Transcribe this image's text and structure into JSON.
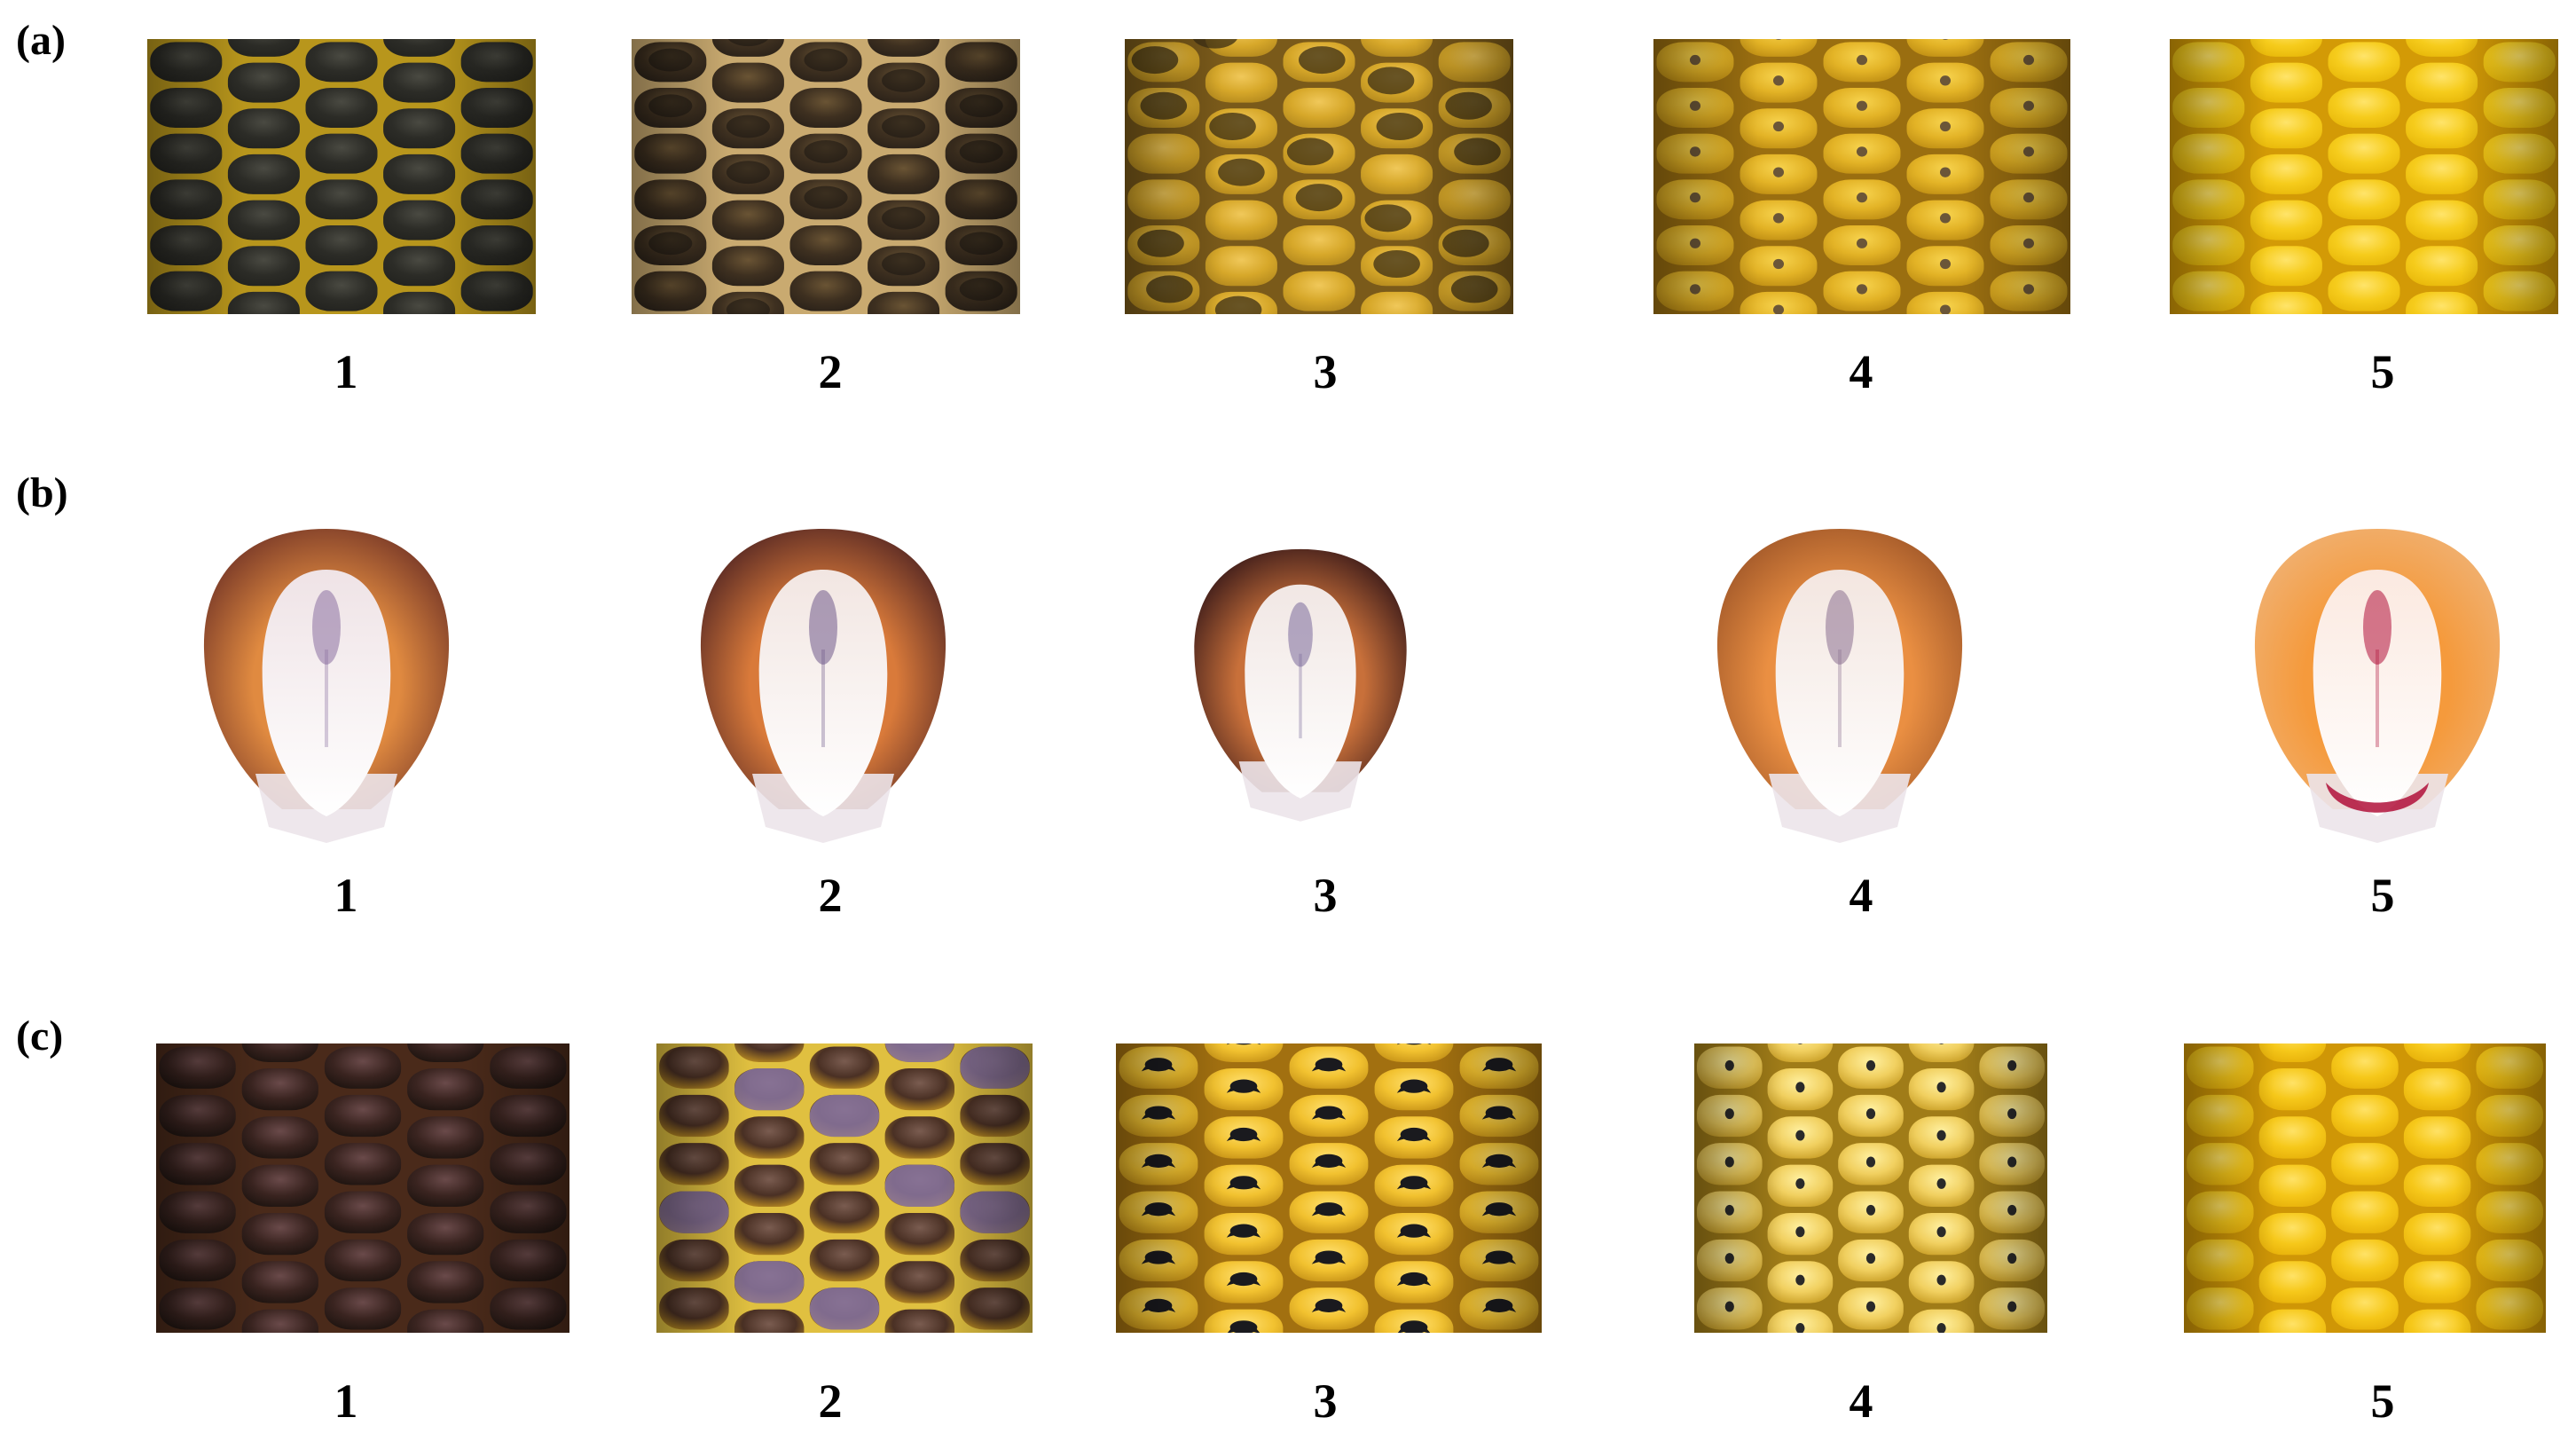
{
  "rows": [
    {
      "label": "(a)",
      "kind": "ear",
      "items": [
        {
          "label": "1",
          "base": "#23231f",
          "kernel": "#2c2c27",
          "highlight": "#4a4a42",
          "gap": "#b8961c",
          "spot": null,
          "spot_style": null
        },
        {
          "label": "2",
          "base": "#2b2219",
          "kernel": "#3e3020",
          "highlight": "#6a5434",
          "gap": "#c9aa70",
          "spot": "#1c1712",
          "spot_style": "blotch"
        },
        {
          "label": "3",
          "base": "#b58a1e",
          "kernel": "#d7a82a",
          "highlight": "#f0c85a",
          "gap": "#7a5a1a",
          "spot": "#3b2e14",
          "spot_style": "mottled"
        },
        {
          "label": "4",
          "base": "#c08f14",
          "kernel": "#e3b326",
          "highlight": "#f7d34e",
          "gap": "#9a6e10",
          "spot": "#6b5638",
          "spot_style": "dot"
        },
        {
          "label": "5",
          "base": "#e8b80a",
          "kernel": "#f6cc1c",
          "highlight": "#ffe46a",
          "gap": "#d39a06",
          "spot": null,
          "spot_style": null
        }
      ]
    },
    {
      "label": "(b)",
      "kind": "kernel",
      "items": [
        {
          "label": "1",
          "outer": "#e08a40",
          "edge": "#7a3a28",
          "inner": "#efe3e6",
          "germ": "#8a6fa0"
        },
        {
          "label": "2",
          "outer": "#d97a3a",
          "edge": "#5a2a24",
          "inner": "#f2e6e2",
          "germ": "#6f5a8a"
        },
        {
          "label": "3",
          "outer": "#c8703a",
          "edge": "#3e1c1a",
          "inner": "#f1e7e4",
          "germ": "#7a6a9a"
        },
        {
          "label": "4",
          "outer": "#ea8f42",
          "edge": "#a45a2a",
          "inner": "#f3e6e0",
          "germ": "#8a7090"
        },
        {
          "label": "5",
          "outer": "#f59a3c",
          "edge": "#f0b070",
          "inner": "#fbe9e0",
          "germ": "#b0103a"
        }
      ]
    },
    {
      "label": "(c)",
      "kind": "ear",
      "items": [
        {
          "label": "1",
          "base": "#1e1410",
          "kernel": "#3a2420",
          "highlight": "#6a4a4a",
          "gap": "#4a2a1a",
          "spot": null,
          "spot_style": null
        },
        {
          "label": "2",
          "base": "#b98a22",
          "kernel": "#4a3024",
          "highlight": "#7a5c50",
          "gap": "#e0c040",
          "spot": "#8a76a0",
          "spot_style": "purplewash"
        },
        {
          "label": "3",
          "base": "#c89418",
          "kernel": "#f2c230",
          "highlight": "#ffe070",
          "gap": "#a27010",
          "spot": "#1a1a1e",
          "spot_style": "fan"
        },
        {
          "label": "4",
          "base": "#caa028",
          "kernel": "#f1d060",
          "highlight": "#fff0a0",
          "gap": "#a07c18",
          "spot": "#2a2a2a",
          "spot_style": "dot"
        },
        {
          "label": "5",
          "base": "#e7b10a",
          "kernel": "#f6c81a",
          "highlight": "#ffe266",
          "gap": "#cf9606",
          "spot": null,
          "spot_style": null
        }
      ]
    }
  ]
}
